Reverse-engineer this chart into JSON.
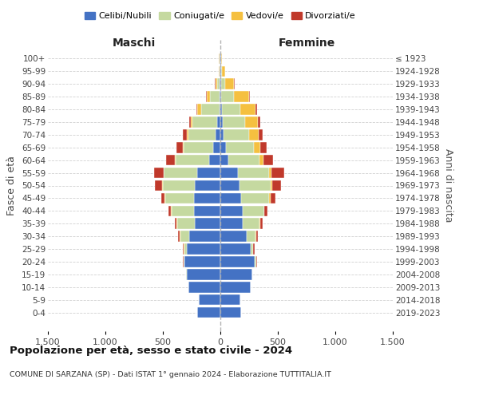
{
  "age_groups": [
    "0-4",
    "5-9",
    "10-14",
    "15-19",
    "20-24",
    "25-29",
    "30-34",
    "35-39",
    "40-44",
    "45-49",
    "50-54",
    "55-59",
    "60-64",
    "65-69",
    "70-74",
    "75-79",
    "80-84",
    "85-89",
    "90-94",
    "95-99",
    "100+"
  ],
  "birth_years": [
    "2019-2023",
    "2014-2018",
    "2009-2013",
    "2004-2008",
    "1999-2003",
    "1994-1998",
    "1989-1993",
    "1984-1988",
    "1979-1983",
    "1974-1978",
    "1969-1973",
    "1964-1968",
    "1959-1963",
    "1954-1958",
    "1949-1953",
    "1944-1948",
    "1939-1943",
    "1934-1938",
    "1929-1933",
    "1924-1928",
    "≤ 1923"
  ],
  "colors": {
    "celibi": "#4472c4",
    "coniugati": "#c5d9a0",
    "vedovi": "#f5c040",
    "divorziati": "#c0392b"
  },
  "males": {
    "celibi": [
      200,
      190,
      280,
      295,
      310,
      290,
      270,
      220,
      230,
      230,
      220,
      200,
      100,
      60,
      40,
      30,
      10,
      10,
      5,
      5,
      5
    ],
    "coniugati": [
      0,
      0,
      0,
      5,
      10,
      25,
      80,
      155,
      195,
      250,
      280,
      290,
      290,
      260,
      240,
      210,
      160,
      80,
      20,
      5,
      5
    ],
    "vedovi": [
      0,
      0,
      0,
      0,
      2,
      3,
      5,
      5,
      5,
      5,
      5,
      5,
      5,
      8,
      12,
      15,
      30,
      30,
      20,
      5,
      3
    ],
    "divorziati": [
      0,
      0,
      0,
      0,
      3,
      5,
      10,
      15,
      20,
      30,
      65,
      80,
      75,
      55,
      35,
      15,
      10,
      5,
      3,
      0,
      0
    ]
  },
  "females": {
    "celibi": [
      180,
      175,
      265,
      275,
      300,
      265,
      230,
      195,
      195,
      180,
      165,
      150,
      70,
      50,
      30,
      20,
      15,
      10,
      5,
      5,
      5
    ],
    "coniugati": [
      0,
      0,
      0,
      5,
      10,
      20,
      75,
      145,
      185,
      245,
      270,
      275,
      270,
      240,
      220,
      195,
      160,
      110,
      35,
      10,
      3
    ],
    "vedovi": [
      0,
      0,
      0,
      0,
      2,
      3,
      5,
      5,
      5,
      10,
      15,
      20,
      35,
      55,
      80,
      110,
      130,
      130,
      80,
      30,
      8
    ],
    "divorziati": [
      0,
      0,
      0,
      0,
      5,
      8,
      15,
      20,
      25,
      45,
      80,
      110,
      80,
      55,
      35,
      25,
      15,
      10,
      5,
      0,
      0
    ]
  },
  "title": "Popolazione per età, sesso e stato civile - 2024",
  "subtitle": "COMUNE DI SARZANA (SP) - Dati ISTAT 1° gennaio 2024 - Elaborazione TUTTITALIA.IT",
  "xlabel_left": "Maschi",
  "xlabel_right": "Femmine",
  "ylabel_left": "Fasce di età",
  "ylabel_right": "Anni di nascita",
  "xlim": 1500,
  "bg_color": "#ffffff",
  "grid_color": "#cccccc"
}
